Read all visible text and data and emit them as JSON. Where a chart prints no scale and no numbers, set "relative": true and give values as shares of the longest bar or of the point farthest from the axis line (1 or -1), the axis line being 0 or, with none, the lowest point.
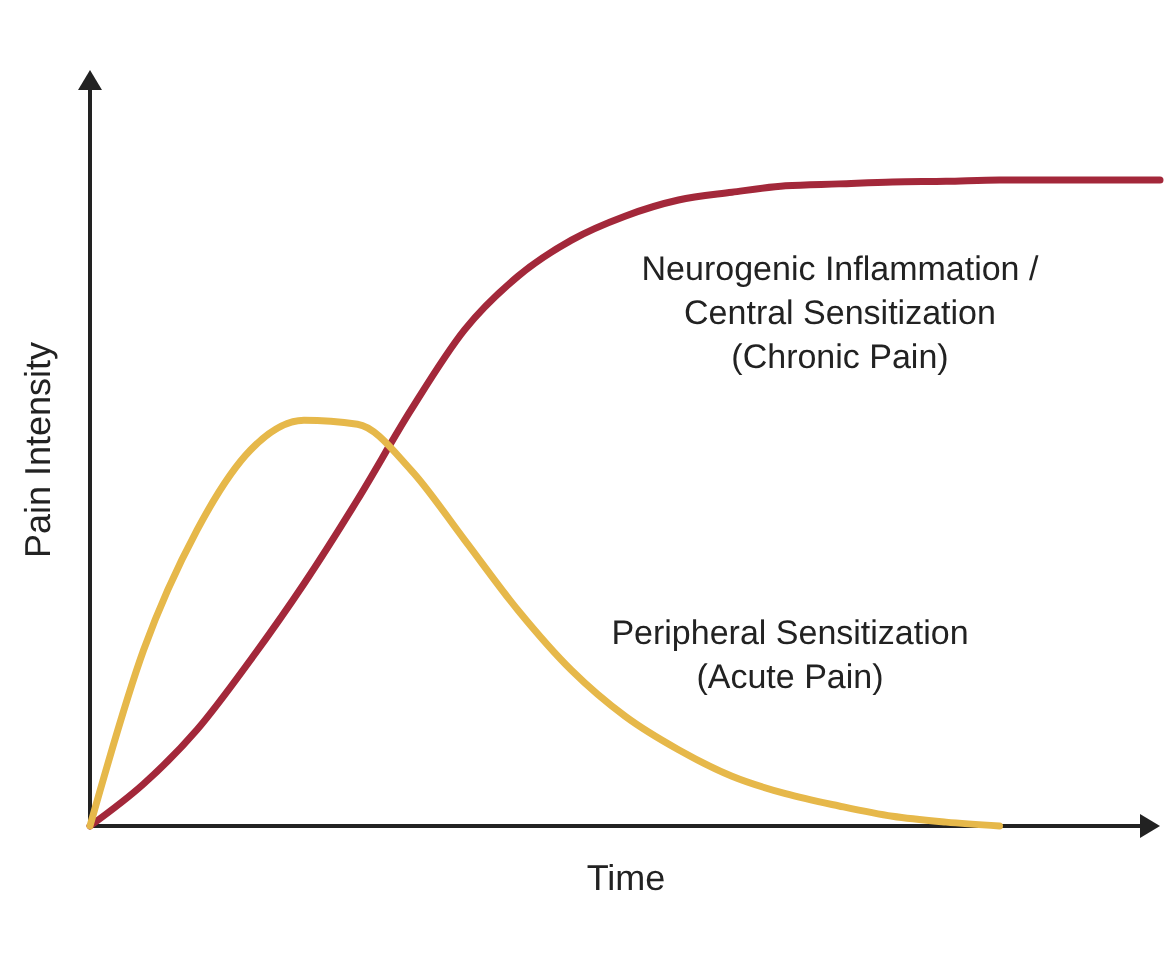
{
  "chart_data": {
    "type": "line",
    "relative": true,
    "xlabel": "Time",
    "ylabel": "Pain Intensity",
    "categories": [
      null,
      null,
      null,
      null,
      null,
      null,
      null,
      null,
      null,
      null,
      null,
      null,
      null,
      null,
      null,
      null,
      null,
      null,
      null,
      null,
      null
    ],
    "series": [
      {
        "name": "Neurogenic Inflammation /\nCentral Sensitization\n(Chronic Pain)",
        "color": "#a3283a",
        "values": [
          0,
          0.065,
          0.149,
          0.257,
          0.375,
          0.505,
          0.644,
          0.768,
          0.851,
          0.907,
          0.944,
          0.969,
          0.981,
          0.991,
          0.994,
          0.997,
          0.998,
          1,
          1,
          1,
          1
        ]
      },
      {
        "name": "Peripheral Sensitization\n(Acute Pain)",
        "color": "#e6b84a",
        "values": [
          0,
          0.272,
          0.458,
          0.582,
          0.628,
          0.622,
          0.551,
          0.443,
          0.334,
          0.241,
          0.17,
          0.118,
          0.077,
          0.05,
          0.031,
          0.015,
          0.006,
          0,
          null,
          null,
          null
        ]
      }
    ],
    "legend": false,
    "marker": "none",
    "line_style": "solid"
  }
}
